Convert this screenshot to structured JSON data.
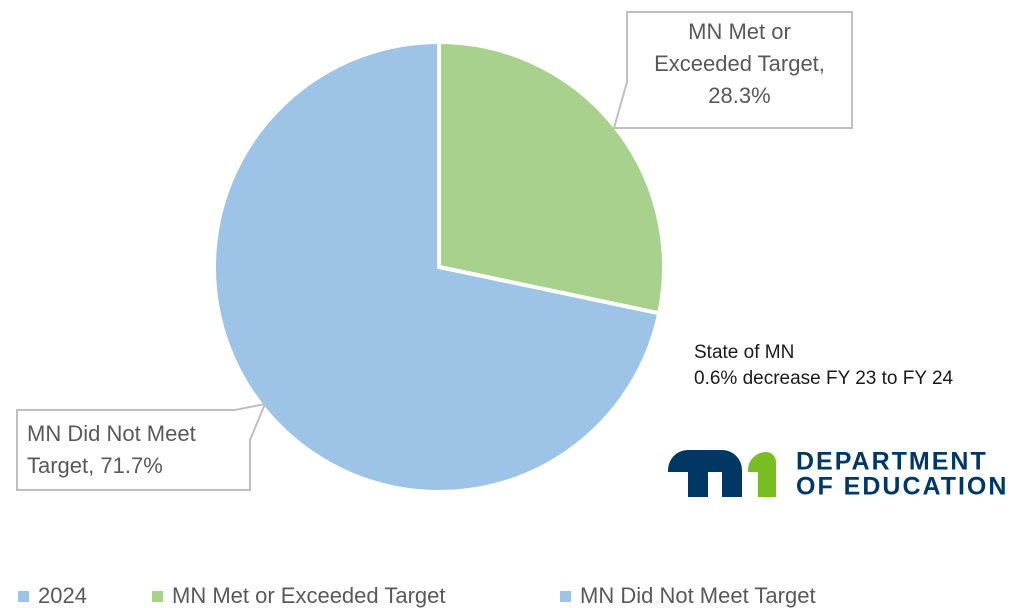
{
  "chart_data": {
    "type": "pie",
    "series_name": "2024",
    "series_color": "#9dc3e6",
    "categories": [
      "MN Met or Exceeded Target",
      "MN Did Not Meet Target"
    ],
    "values": [
      28.3,
      71.7
    ],
    "value_labels": [
      "MN Met or Exceeded Target, 28.3%",
      "MN Did Not Meet Target, 71.7%"
    ],
    "colors": [
      "#a9d18e",
      "#9dc3e6"
    ],
    "legend": "bottom"
  },
  "annotations": [
    "State of MN",
    "0.6% decrease FY 23 to FY 24"
  ],
  "logo": {
    "line1": "DEPARTMENT",
    "line2": "OF EDUCATION"
  }
}
